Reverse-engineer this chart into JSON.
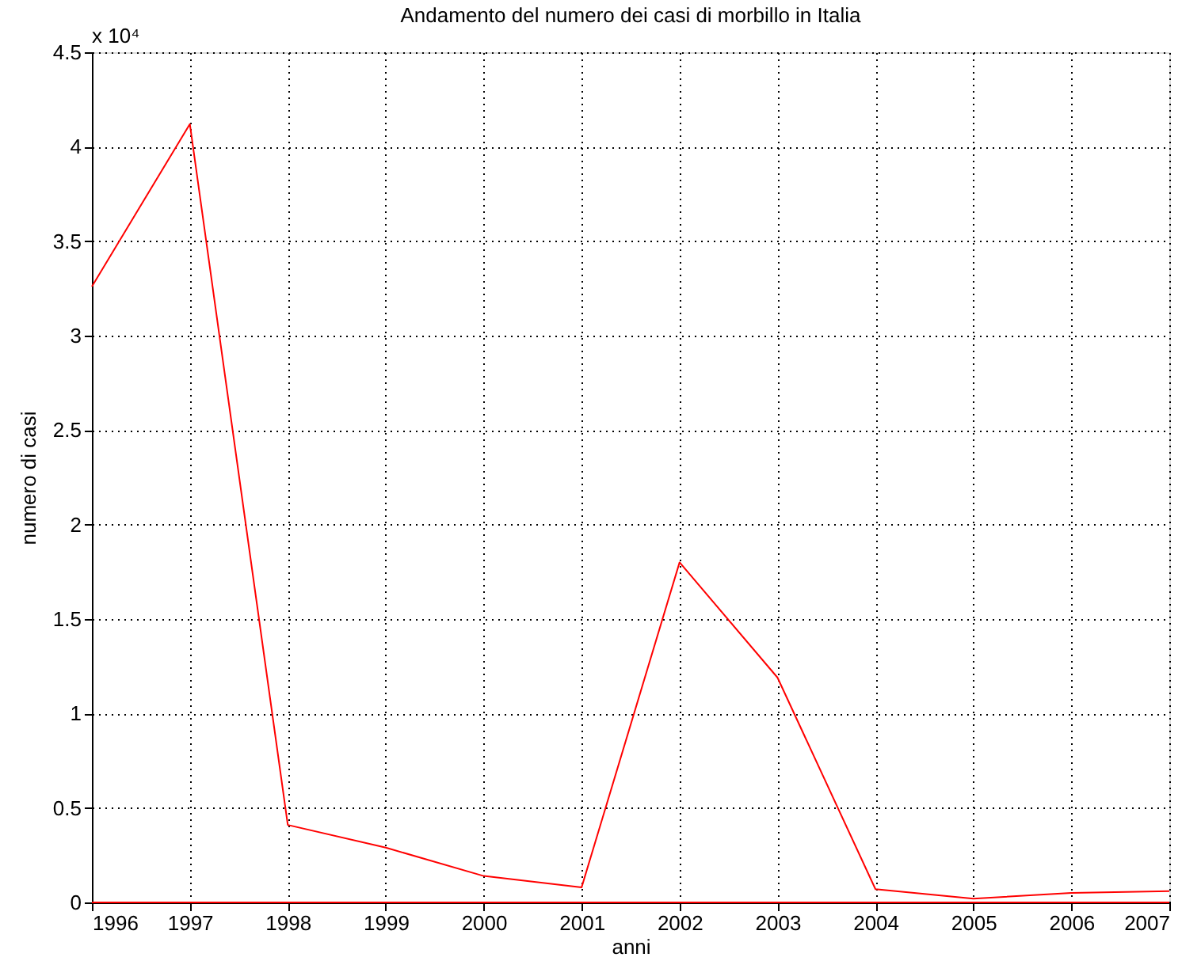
{
  "chart_data": {
    "type": "line",
    "title": "Andamento del numero dei casi di morbillo in Italia",
    "xlabel": "anni",
    "ylabel": "numero di casi",
    "annotations": [
      "x 10⁴"
    ],
    "x": [
      1996,
      1997,
      1998,
      1999,
      2000,
      2001,
      2002,
      2003,
      2004,
      2005,
      2006,
      2007
    ],
    "series": [
      {
        "color": "#ff0000",
        "values": [
          3.26,
          4.12,
          0.41,
          0.29,
          0.14,
          0.08,
          1.8,
          1.19,
          0.07,
          0.02,
          0.05,
          0.06
        ]
      },
      {
        "color": "#ff0000",
        "values": [
          0,
          0,
          0,
          0,
          0,
          0,
          0,
          0,
          0,
          0,
          0,
          0
        ]
      }
    ],
    "xlim": [
      1996,
      2007
    ],
    "xticks": [
      1996,
      1997,
      1998,
      1999,
      2000,
      2001,
      2002,
      2003,
      2004,
      2005,
      2006,
      2007
    ],
    "ylim": [
      0,
      4.5
    ],
    "yticks": [
      0,
      0.5,
      1,
      1.5,
      2,
      2.5,
      3,
      3.5,
      4,
      4.5
    ],
    "grid": true,
    "legend": false,
    "marker": "none",
    "line_style": "solid"
  }
}
